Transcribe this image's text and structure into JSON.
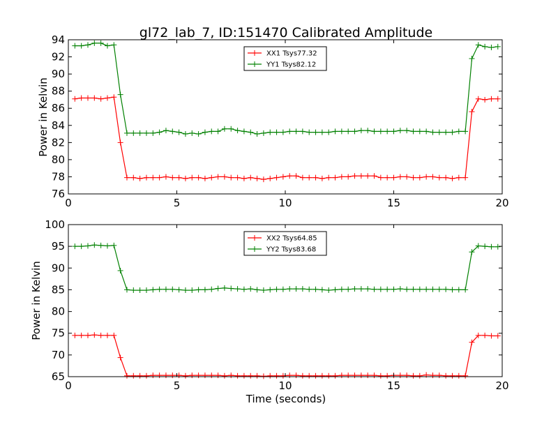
{
  "title": "gl72_lab_7, ID:151470 Calibrated Amplitude",
  "chart_data": [
    {
      "type": "line",
      "xlabel": "",
      "ylabel": "Power in Kelvin",
      "xlim": [
        0,
        20
      ],
      "ylim": [
        76,
        94
      ],
      "xticks": [
        "0",
        "5",
        "10",
        "15",
        "20"
      ],
      "yticks": [
        "76",
        "78",
        "80",
        "82",
        "84",
        "86",
        "88",
        "90",
        "92",
        "94"
      ],
      "legend_position": "top-center",
      "x": [
        0.3,
        0.6,
        0.9,
        1.2,
        1.5,
        1.8,
        2.1,
        2.4,
        2.7,
        3.0,
        3.3,
        3.6,
        3.9,
        4.2,
        4.5,
        4.8,
        5.1,
        5.4,
        5.7,
        6.0,
        6.3,
        6.6,
        6.9,
        7.2,
        7.5,
        7.8,
        8.1,
        8.4,
        8.7,
        9.0,
        9.3,
        9.6,
        9.9,
        10.2,
        10.5,
        10.8,
        11.1,
        11.4,
        11.7,
        12.0,
        12.3,
        12.6,
        12.9,
        13.2,
        13.5,
        13.8,
        14.1,
        14.4,
        14.7,
        15.0,
        15.3,
        15.6,
        15.9,
        16.2,
        16.5,
        16.8,
        17.1,
        17.4,
        17.7,
        18.0,
        18.3,
        18.6,
        18.9,
        19.2,
        19.5,
        19.8
      ],
      "series": [
        {
          "name": "XX1 Tsys77.32",
          "color": "#ff0000",
          "values": [
            87.1,
            87.2,
            87.2,
            87.2,
            87.1,
            87.2,
            87.3,
            82.0,
            77.9,
            77.9,
            77.8,
            77.9,
            77.9,
            77.9,
            78.0,
            77.9,
            77.9,
            77.8,
            77.9,
            77.9,
            77.8,
            77.9,
            78.0,
            78.0,
            77.9,
            77.9,
            77.8,
            77.9,
            77.8,
            77.7,
            77.8,
            77.9,
            78.0,
            78.1,
            78.1,
            77.9,
            77.9,
            77.9,
            77.8,
            77.9,
            77.9,
            78.0,
            78.0,
            78.1,
            78.1,
            78.1,
            78.1,
            77.9,
            77.9,
            77.9,
            78.0,
            78.0,
            77.9,
            77.9,
            78.0,
            78.0,
            77.9,
            77.9,
            77.8,
            77.9,
            77.9,
            85.6,
            87.1,
            87.0,
            87.1,
            87.1
          ]
        },
        {
          "name": "YY1 Tsys82.12",
          "color": "#008000",
          "values": [
            93.3,
            93.3,
            93.4,
            93.6,
            93.6,
            93.3,
            93.4,
            87.6,
            83.1,
            83.1,
            83.1,
            83.1,
            83.1,
            83.2,
            83.4,
            83.3,
            83.2,
            83.0,
            83.1,
            83.0,
            83.2,
            83.3,
            83.3,
            83.6,
            83.6,
            83.4,
            83.3,
            83.2,
            83.0,
            83.1,
            83.2,
            83.2,
            83.2,
            83.3,
            83.3,
            83.3,
            83.2,
            83.2,
            83.2,
            83.2,
            83.3,
            83.3,
            83.3,
            83.3,
            83.4,
            83.4,
            83.3,
            83.3,
            83.3,
            83.3,
            83.4,
            83.4,
            83.3,
            83.3,
            83.3,
            83.2,
            83.2,
            83.2,
            83.2,
            83.3,
            83.3,
            91.8,
            93.4,
            93.2,
            93.1,
            93.2
          ]
        }
      ]
    },
    {
      "type": "line",
      "xlabel": "Time (seconds)",
      "ylabel": "Power in Kelvin",
      "xlim": [
        0,
        20
      ],
      "ylim": [
        65,
        100
      ],
      "xticks": [
        "0",
        "5",
        "10",
        "15",
        "20"
      ],
      "yticks": [
        "65",
        "70",
        "75",
        "80",
        "85",
        "90",
        "95",
        "100"
      ],
      "legend_position": "top-center",
      "x": [
        0.3,
        0.6,
        0.9,
        1.2,
        1.5,
        1.8,
        2.1,
        2.4,
        2.7,
        3.0,
        3.3,
        3.6,
        3.9,
        4.2,
        4.5,
        4.8,
        5.1,
        5.4,
        5.7,
        6.0,
        6.3,
        6.6,
        6.9,
        7.2,
        7.5,
        7.8,
        8.1,
        8.4,
        8.7,
        9.0,
        9.3,
        9.6,
        9.9,
        10.2,
        10.5,
        10.8,
        11.1,
        11.4,
        11.7,
        12.0,
        12.3,
        12.6,
        12.9,
        13.2,
        13.5,
        13.8,
        14.1,
        14.4,
        14.7,
        15.0,
        15.3,
        15.6,
        15.9,
        16.2,
        16.5,
        16.8,
        17.1,
        17.4,
        17.7,
        18.0,
        18.3,
        18.6,
        18.9,
        19.2,
        19.5,
        19.8
      ],
      "series": [
        {
          "name": "XX2 Tsys64.85",
          "color": "#ff0000",
          "values": [
            74.5,
            74.5,
            74.5,
            74.6,
            74.5,
            74.5,
            74.5,
            69.4,
            65.2,
            65.2,
            65.2,
            65.2,
            65.3,
            65.3,
            65.3,
            65.3,
            65.3,
            65.2,
            65.3,
            65.3,
            65.3,
            65.3,
            65.3,
            65.2,
            65.3,
            65.2,
            65.2,
            65.2,
            65.2,
            65.1,
            65.2,
            65.2,
            65.2,
            65.3,
            65.3,
            65.2,
            65.2,
            65.2,
            65.2,
            65.2,
            65.2,
            65.3,
            65.3,
            65.3,
            65.3,
            65.3,
            65.3,
            65.2,
            65.2,
            65.3,
            65.3,
            65.3,
            65.2,
            65.2,
            65.4,
            65.3,
            65.3,
            65.2,
            65.2,
            65.2,
            65.2,
            72.9,
            74.5,
            74.5,
            74.4,
            74.4
          ]
        },
        {
          "name": "YY2 Tsys83.68",
          "color": "#008000",
          "values": [
            95.0,
            95.0,
            95.1,
            95.3,
            95.2,
            95.1,
            95.2,
            89.4,
            85.0,
            84.9,
            84.9,
            84.9,
            85.0,
            85.1,
            85.1,
            85.1,
            85.0,
            84.9,
            84.9,
            85.0,
            85.0,
            85.1,
            85.3,
            85.4,
            85.3,
            85.2,
            85.1,
            85.2,
            85.0,
            84.9,
            85.0,
            85.1,
            85.1,
            85.2,
            85.2,
            85.2,
            85.1,
            85.1,
            85.0,
            84.9,
            85.0,
            85.1,
            85.1,
            85.2,
            85.2,
            85.2,
            85.1,
            85.1,
            85.1,
            85.1,
            85.2,
            85.1,
            85.1,
            85.1,
            85.1,
            85.1,
            85.1,
            85.1,
            85.0,
            85.0,
            85.0,
            93.7,
            95.1,
            95.0,
            94.9,
            94.9
          ]
        }
      ]
    }
  ]
}
